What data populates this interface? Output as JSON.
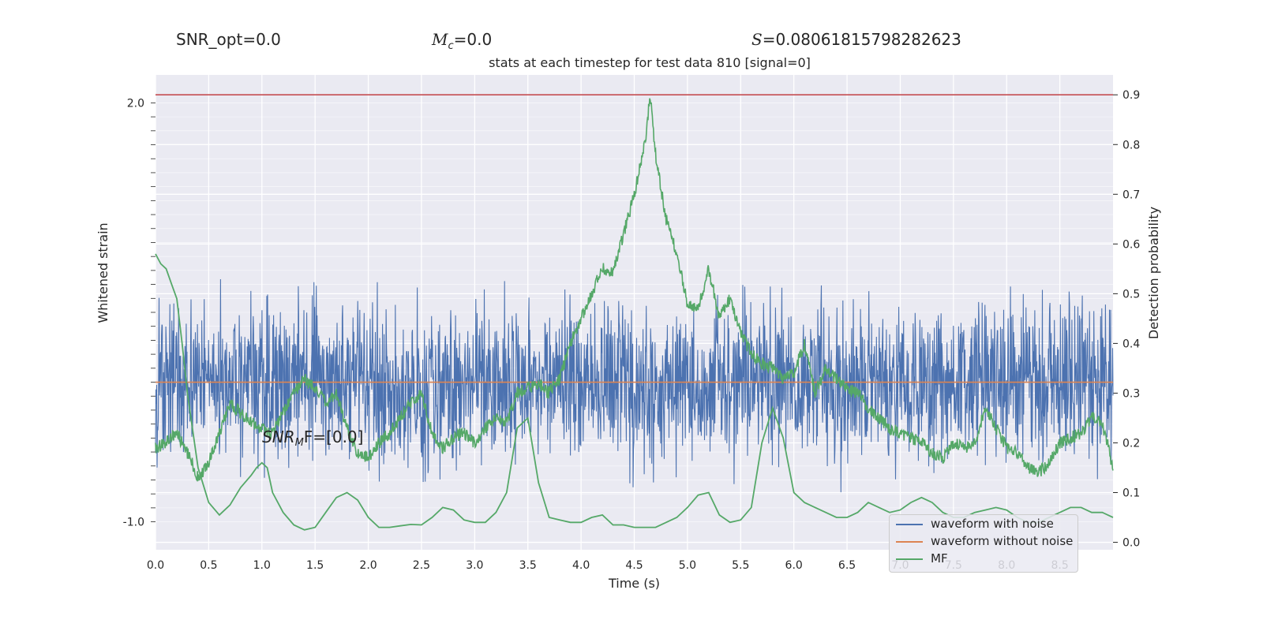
{
  "header": {
    "snr_opt": "SNR_opt=0.0",
    "mc_prefix": "M",
    "mc_sub": "c",
    "mc_value": "=0.0",
    "s_prefix": "S",
    "s_value": "=0.08061815798282623",
    "title": "stats at each timestep for test data 810 [signal=0]"
  },
  "annotation": {
    "snr_mf_prefix": "SNR",
    "snr_mf_sub": "M",
    "snr_mf_suffix": "F=[0.0]"
  },
  "colors": {
    "bg": "#eaeaf2",
    "noise": "#4c72b0",
    "clean": "#dd8452",
    "mf": "#55a868",
    "threshold": "#c44e52"
  },
  "chart_data": {
    "type": "line",
    "xlabel": "Time (s)",
    "ylabel_left": "Whitened strain",
    "ylabel_right": "Detection probability",
    "xlim": [
      0.0,
      9.0
    ],
    "ylim_right": [
      -0.015,
      0.94
    ],
    "ylim_left": [
      -1.2,
      2.2
    ],
    "xticks": [
      "0.0",
      "0.5",
      "1.0",
      "1.5",
      "2.0",
      "2.5",
      "3.0",
      "3.5",
      "4.0",
      "4.5",
      "5.0",
      "5.5",
      "6.0",
      "6.5",
      "7.0",
      "7.5",
      "8.0",
      "8.5"
    ],
    "yticks_right": [
      "0.0",
      "0.1",
      "0.2",
      "0.3",
      "0.4",
      "0.5",
      "0.6",
      "0.7",
      "0.8",
      "0.9"
    ],
    "yticks_left": [
      "-1.0",
      "2.0"
    ],
    "threshold": 0.9,
    "grid": true,
    "legend_placement": "lower-right",
    "legend": [
      "waveform with noise",
      "waveform without noise",
      "MF"
    ],
    "detection_probability": {
      "x": [
        0.0,
        0.1,
        0.2,
        0.3,
        0.4,
        0.5,
        0.6,
        0.7,
        0.8,
        0.9,
        1.0,
        1.1,
        1.2,
        1.3,
        1.4,
        1.5,
        1.6,
        1.7,
        1.8,
        1.9,
        2.0,
        2.1,
        2.2,
        2.3,
        2.4,
        2.5,
        2.6,
        2.7,
        2.8,
        2.9,
        3.0,
        3.1,
        3.2,
        3.3,
        3.4,
        3.5,
        3.6,
        3.7,
        3.8,
        3.9,
        4.0,
        4.1,
        4.2,
        4.3,
        4.4,
        4.5,
        4.6,
        4.65,
        4.7,
        4.8,
        4.9,
        5.0,
        5.1,
        5.2,
        5.3,
        5.4,
        5.5,
        5.6,
        5.7,
        5.8,
        5.9,
        6.0,
        6.1,
        6.2,
        6.3,
        6.4,
        6.5,
        6.6,
        6.7,
        6.8,
        6.9,
        7.0,
        7.1,
        7.2,
        7.3,
        7.4,
        7.5,
        7.6,
        7.7,
        7.8,
        7.9,
        8.0,
        8.1,
        8.2,
        8.3,
        8.4,
        8.5,
        8.6,
        8.7,
        8.8,
        8.9,
        9.0
      ],
      "y": [
        0.19,
        0.2,
        0.22,
        0.18,
        0.13,
        0.16,
        0.22,
        0.28,
        0.26,
        0.24,
        0.23,
        0.22,
        0.26,
        0.3,
        0.33,
        0.31,
        0.28,
        0.3,
        0.23,
        0.18,
        0.17,
        0.2,
        0.22,
        0.25,
        0.28,
        0.3,
        0.22,
        0.19,
        0.21,
        0.22,
        0.2,
        0.23,
        0.25,
        0.24,
        0.3,
        0.31,
        0.32,
        0.3,
        0.33,
        0.4,
        0.45,
        0.5,
        0.55,
        0.54,
        0.62,
        0.7,
        0.8,
        0.9,
        0.78,
        0.65,
        0.58,
        0.48,
        0.47,
        0.55,
        0.45,
        0.49,
        0.42,
        0.38,
        0.36,
        0.35,
        0.33,
        0.34,
        0.4,
        0.3,
        0.35,
        0.33,
        0.31,
        0.3,
        0.27,
        0.25,
        0.23,
        0.22,
        0.21,
        0.2,
        0.18,
        0.17,
        0.2,
        0.19,
        0.2,
        0.27,
        0.23,
        0.19,
        0.18,
        0.15,
        0.14,
        0.16,
        0.2,
        0.21,
        0.22,
        0.25,
        0.24,
        0.15
      ]
    },
    "mf": {
      "x": [
        0.0,
        0.05,
        0.1,
        0.15,
        0.2,
        0.25,
        0.3,
        0.4,
        0.5,
        0.6,
        0.7,
        0.8,
        0.9,
        0.95,
        1.0,
        1.05,
        1.1,
        1.2,
        1.3,
        1.4,
        1.5,
        1.6,
        1.7,
        1.8,
        1.9,
        2.0,
        2.1,
        2.2,
        2.3,
        2.4,
        2.5,
        2.6,
        2.7,
        2.8,
        2.9,
        3.0,
        3.1,
        3.2,
        3.3,
        3.4,
        3.5,
        3.6,
        3.7,
        3.8,
        3.9,
        4.0,
        4.1,
        4.2,
        4.3,
        4.4,
        4.5,
        4.6,
        4.7,
        4.8,
        4.9,
        5.0,
        5.1,
        5.2,
        5.3,
        5.4,
        5.5,
        5.6,
        5.7,
        5.8,
        5.9,
        6.0,
        6.05,
        6.1,
        6.2,
        6.3,
        6.4,
        6.5,
        6.6,
        6.7,
        6.8,
        6.9,
        7.0,
        7.1,
        7.2,
        7.3,
        7.4,
        7.5,
        7.6,
        7.7,
        7.8,
        7.9,
        8.0,
        8.1,
        8.2,
        8.3,
        8.4,
        8.5,
        8.6,
        8.7,
        8.8,
        8.9,
        9.0
      ],
      "y": [
        0.58,
        0.56,
        0.55,
        0.52,
        0.49,
        0.4,
        0.3,
        0.15,
        0.08,
        0.055,
        0.075,
        0.11,
        0.135,
        0.15,
        0.16,
        0.15,
        0.1,
        0.06,
        0.035,
        0.025,
        0.03,
        0.06,
        0.09,
        0.1,
        0.085,
        0.05,
        0.03,
        0.03,
        0.033,
        0.036,
        0.035,
        0.05,
        0.07,
        0.065,
        0.045,
        0.04,
        0.04,
        0.06,
        0.1,
        0.23,
        0.25,
        0.12,
        0.05,
        0.045,
        0.04,
        0.04,
        0.05,
        0.055,
        0.035,
        0.035,
        0.03,
        0.03,
        0.03,
        0.04,
        0.05,
        0.07,
        0.095,
        0.1,
        0.055,
        0.04,
        0.045,
        0.07,
        0.2,
        0.27,
        0.21,
        0.1,
        0.09,
        0.08,
        0.07,
        0.06,
        0.05,
        0.05,
        0.06,
        0.08,
        0.07,
        0.06,
        0.065,
        0.08,
        0.09,
        0.08,
        0.06,
        0.05,
        0.05,
        0.06,
        0.065,
        0.07,
        0.065,
        0.05,
        0.04,
        0.04,
        0.05,
        0.06,
        0.07,
        0.07,
        0.06,
        0.06,
        0.05
      ]
    }
  }
}
